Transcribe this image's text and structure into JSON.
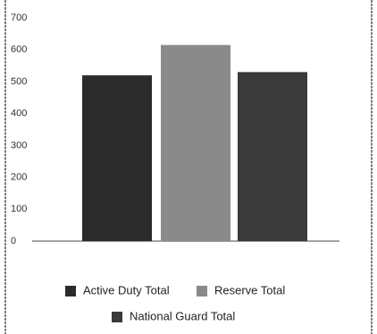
{
  "chart_data": {
    "type": "bar",
    "categories": [
      null
    ],
    "series": [
      {
        "name": "Active Duty Total",
        "color": "#2b2b2b",
        "values": [
          520
        ]
      },
      {
        "name": "Reserve Total",
        "color": "#8a8a8a",
        "values": [
          615
        ]
      },
      {
        "name": "National Guard Total",
        "color": "#3a3a3a",
        "values": [
          530
        ]
      }
    ],
    "ylim": [
      0,
      700
    ],
    "yticks": [
      0,
      100,
      200,
      300,
      400,
      500,
      600,
      700
    ],
    "grid": false,
    "legend": "bottom"
  }
}
